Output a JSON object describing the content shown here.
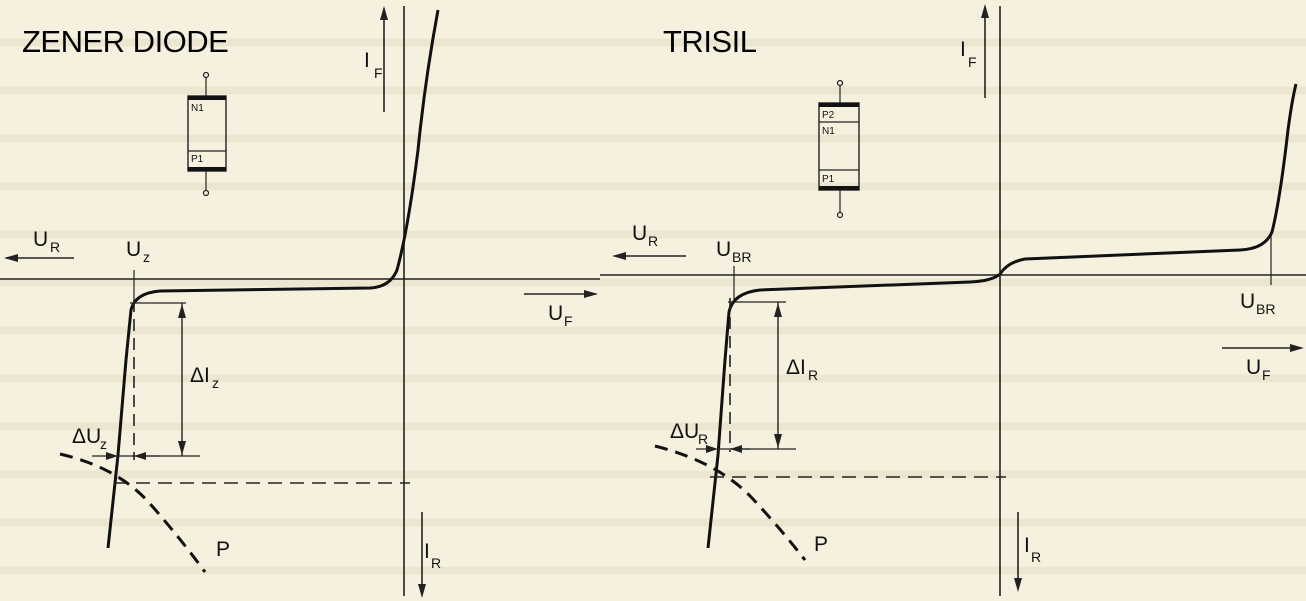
{
  "zener": {
    "title": "ZENER DIODE",
    "diode_layers": [
      "N1",
      "P1"
    ],
    "labels": {
      "if_main": "I",
      "if_sub": "F",
      "ur_main": "U",
      "ur_sub": "R",
      "uz_main": "U",
      "uz_sub": "z",
      "uf_main": "U",
      "uf_sub": "F",
      "dIz_main": "ΔI",
      "dIz_sub": "z",
      "dUz_main": "ΔU",
      "dUz_sub": "z",
      "p": "P",
      "ir_main": "I",
      "ir_sub": "R"
    }
  },
  "trisil": {
    "title": "TRISIL",
    "diode_layers": [
      "P2",
      "N1",
      "P1"
    ],
    "labels": {
      "if_main": "I",
      "if_sub": "F",
      "ur_main": "U",
      "ur_sub": "R",
      "ubr_left_main": "U",
      "ubr_left_sub": "BR",
      "ubr_right_main": "U",
      "ubr_right_sub": "BR",
      "uf_main": "U",
      "uf_sub": "F",
      "dIr_main": "ΔI",
      "dIr_sub": "R",
      "dUr_main": "ΔU",
      "dUr_sub": "R",
      "p": "P",
      "ir_main": "I",
      "ir_sub": "R"
    }
  }
}
